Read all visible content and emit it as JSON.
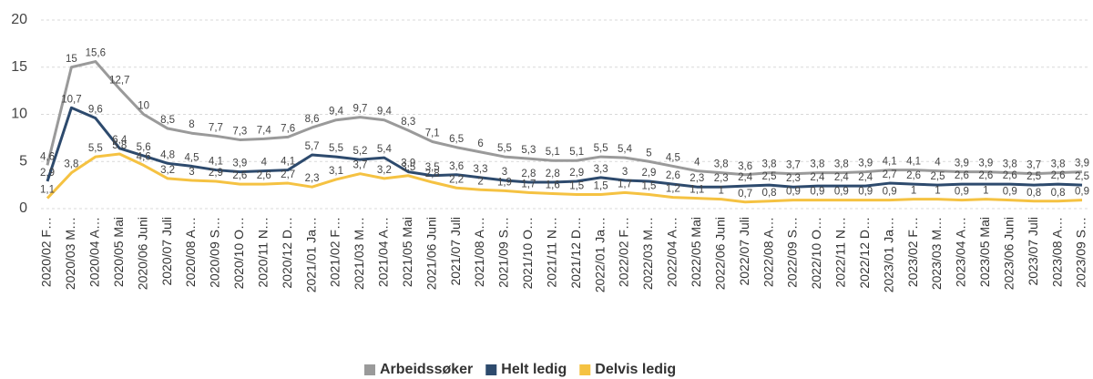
{
  "chart_data": {
    "type": "line",
    "categories": [
      "2020/02 F…",
      "2020/03 M…",
      "2020/04 A…",
      "2020/05 Mai",
      "2020/06 Juni",
      "2020/07 Juli",
      "2020/08 A…",
      "2020/09 S…",
      "2020/10 O…",
      "2020/11 N…",
      "2020/12 D…",
      "2021/01 Ja…",
      "2021/02 F…",
      "2021/03 M…",
      "2021/04 A…",
      "2021/05 Mai",
      "2021/06 Juni",
      "2021/07 Juli",
      "2021/08 A…",
      "2021/09 S…",
      "2021/10 O…",
      "2021/11 N…",
      "2021/12 D…",
      "2022/01 Ja…",
      "2022/02 F…",
      "2022/03 M…",
      "2022/04 A…",
      "2022/05 Mai",
      "2022/06 Juni",
      "2022/07 Juli",
      "2022/08 A…",
      "2022/09 S…",
      "2022/10 O…",
      "2022/11 N…",
      "2022/12 D…",
      "2023/01 Ja…",
      "2023/02 F…",
      "2023/03 M…",
      "2023/04 A…",
      "2023/05 Mai",
      "2023/06 Juni",
      "2023/07 Juli",
      "2023/08 A…",
      "2023/09 S…"
    ],
    "series": [
      {
        "name": "Arbeidssøker",
        "color": "#9a9a9a",
        "values": [
          4.6,
          15,
          15.6,
          12.7,
          10,
          8.5,
          8,
          7.7,
          7.3,
          7.4,
          7.6,
          8.6,
          9.4,
          9.7,
          9.4,
          8.3,
          7.1,
          6.5,
          6,
          5.5,
          5.3,
          5.1,
          5.1,
          5.5,
          5.4,
          5,
          4.5,
          4,
          3.8,
          3.6,
          3.8,
          3.7,
          3.8,
          3.8,
          3.9,
          4.1,
          4.1,
          4,
          3.9,
          3.9,
          3.8,
          3.7,
          3.8,
          3.9
        ],
        "value_labels": [
          "4,6",
          "15",
          "15,6",
          "12,7",
          "10",
          "8,5",
          "8",
          "7,7",
          "7,3",
          "7,4",
          "7,6",
          "8,6",
          "9,4",
          "9,7",
          "9,4",
          "8,3",
          "7,1",
          "6,5",
          "6",
          "5,5",
          "5,3",
          "5,1",
          "5,1",
          "5,5",
          "5,4",
          "5",
          "4,5",
          "4",
          "3,8",
          "3,6",
          "3,8",
          "3,7",
          "3,8",
          "3,8",
          "3,9",
          "4,1",
          "4,1",
          "4",
          "3,9",
          "3,9",
          "3,8",
          "3,7",
          "3,8",
          "3,9"
        ]
      },
      {
        "name": "Helt ledig",
        "color": "#2d4a6d",
        "values": [
          2.9,
          10.7,
          9.6,
          6.4,
          5.6,
          4.8,
          4.5,
          4.1,
          3.9,
          4,
          4.1,
          5.7,
          5.5,
          5.2,
          5.4,
          3.9,
          3.5,
          3.6,
          3.3,
          3,
          2.8,
          2.8,
          2.9,
          3.3,
          3,
          2.9,
          2.6,
          2.3,
          2.3,
          2.4,
          2.5,
          2.3,
          2.4,
          2.4,
          2.4,
          2.7,
          2.6,
          2.5,
          2.6,
          2.6,
          2.6,
          2.5,
          2.6,
          2.5
        ],
        "value_labels": [
          "2,9",
          "10,7",
          "9,6",
          "6,4",
          "5,6",
          "4,8",
          "4,5",
          "4,1",
          "3,9",
          "4",
          "4,1",
          "5,7",
          "5,5",
          "5,2",
          "5,4",
          "3,9",
          "3,5",
          "3,6",
          "3,3",
          "3",
          "2,8",
          "2,8",
          "2,9",
          "3,3",
          "3",
          "2,9",
          "2,6",
          "2,3",
          "2,3",
          "2,4",
          "2,5",
          "2,3",
          "2,4",
          "2,4",
          "2,4",
          "2,7",
          "2,6",
          "2,5",
          "2,6",
          "2,6",
          "2,6",
          "2,5",
          "2,6",
          "2,5"
        ]
      },
      {
        "name": "Delvis ledig",
        "color": "#f5c242",
        "values": [
          1.1,
          3.8,
          5.5,
          5.8,
          4.6,
          3.2,
          3,
          2.9,
          2.6,
          2.6,
          2.7,
          2.3,
          3.1,
          3.7,
          3.2,
          3.5,
          2.8,
          2.2,
          2,
          1.9,
          1.7,
          1.6,
          1.5,
          1.5,
          1.7,
          1.5,
          1.2,
          1.1,
          1,
          0.7,
          0.8,
          0.9,
          0.9,
          0.9,
          0.9,
          0.9,
          1,
          1,
          0.9,
          1,
          0.9,
          0.8,
          0.8,
          0.9
        ],
        "value_labels": [
          "1,1",
          "3,8",
          "5,5",
          "5,8",
          "4,6",
          "3,2",
          "3",
          "2,9",
          "2,6",
          "2,6",
          "2,7",
          "2,3",
          "3,1",
          "3,7",
          "3,2",
          "3,5",
          "2,8",
          "2,2",
          "2",
          "1,9",
          "1,7",
          "1,6",
          "1,5",
          "1,5",
          "1,7",
          "1,5",
          "1,2",
          "1,1",
          "1",
          "0,7",
          "0,8",
          "0,9",
          "0,9",
          "0,9",
          "0,9",
          "0,9",
          "1",
          "1",
          "0,9",
          "1",
          "0,9",
          "0,8",
          "0,8",
          "0,9"
        ]
      }
    ],
    "ylim": [
      0,
      20
    ],
    "yticks": [
      0,
      5,
      10,
      15,
      20
    ],
    "grid": true,
    "legend": "bottom"
  }
}
